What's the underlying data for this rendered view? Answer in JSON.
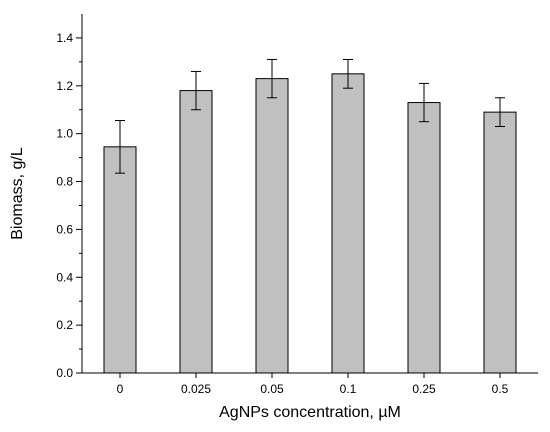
{
  "chart_data": {
    "type": "bar",
    "title": "",
    "xlabel": "AgNPs concentration,  µM",
    "ylabel": "Biomass, g/L",
    "categories": [
      "0",
      "0.025",
      "0.05",
      "0.1",
      "0.25",
      "0.5"
    ],
    "values": [
      0.945,
      1.18,
      1.23,
      1.25,
      1.13,
      1.09
    ],
    "errors": [
      0.11,
      0.08,
      0.08,
      0.06,
      0.08,
      0.06
    ],
    "ylim": [
      0,
      1.5
    ],
    "yticks": [
      "0.0",
      "0.2",
      "0.4",
      "0.6",
      "0.8",
      "1.0",
      "1.2",
      "1.4"
    ],
    "grid": false,
    "bar_color": "#c0c0c0",
    "bar_edge_color": "#000000"
  }
}
